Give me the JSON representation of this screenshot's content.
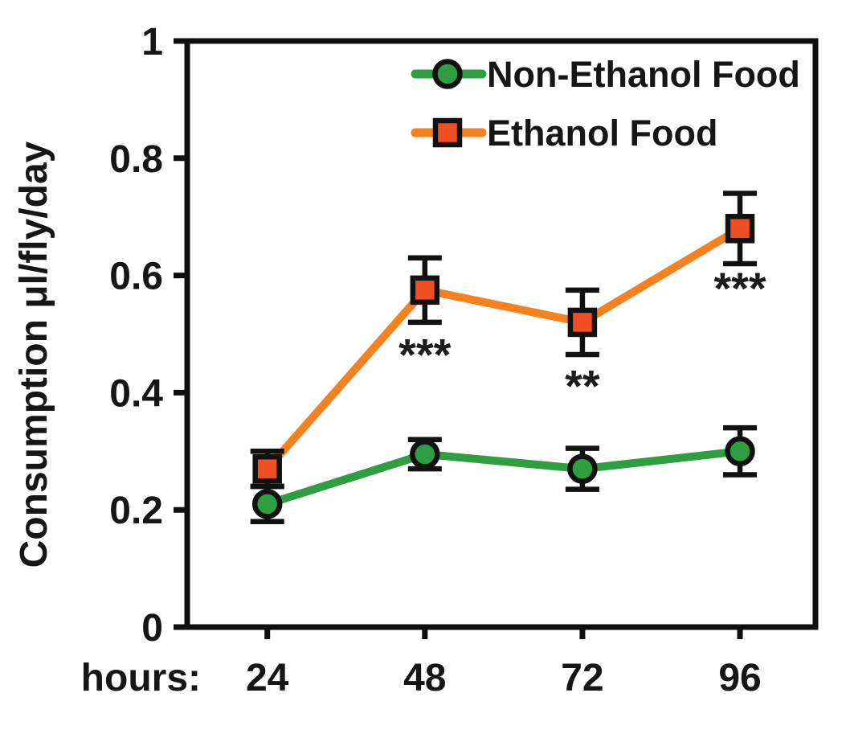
{
  "figure": {
    "background": "#ffffff"
  },
  "chart_data": {
    "type": "line",
    "title": "",
    "ylabel": "Consumption μl/fly/day",
    "xlabel_prefix": "hours:",
    "x": [
      24,
      48,
      72,
      96
    ],
    "xtick_labels": [
      "24",
      "48",
      "72",
      "96"
    ],
    "xlim": [
      11.8,
      107.5
    ],
    "ylim": [
      0,
      1
    ],
    "yticks": [
      0,
      0.2,
      0.4,
      0.6,
      0.8,
      1
    ],
    "ytick_labels": [
      "0",
      "0.2",
      "0.4",
      "0.6",
      "0.8",
      "1"
    ],
    "grid": false,
    "axis_color": "#0f0f0f",
    "error_bar_color": "#111111",
    "legend": {
      "position": "top-right-inside"
    },
    "series": [
      {
        "name": "Non-Ethanol Food",
        "marker": "circle",
        "line_color": "#2f9e41",
        "marker_fill": "#2f9e41",
        "marker_edge": "#111111",
        "values": [
          0.21,
          0.295,
          0.27,
          0.3
        ],
        "errors": [
          0.03,
          0.025,
          0.035,
          0.04
        ]
      },
      {
        "name": "Ethanol Food",
        "marker": "square",
        "line_color": "#f58220",
        "marker_fill": "#f04f23",
        "marker_edge": "#111111",
        "values": [
          0.27,
          0.575,
          0.52,
          0.68
        ],
        "errors": [
          0.03,
          0.055,
          0.055,
          0.06
        ]
      }
    ],
    "annotations": [
      {
        "text": "***",
        "x": 48,
        "y": 0.477
      },
      {
        "text": "**",
        "x": 72,
        "y": 0.423
      },
      {
        "text": "***",
        "x": 96,
        "y": 0.59
      }
    ]
  }
}
